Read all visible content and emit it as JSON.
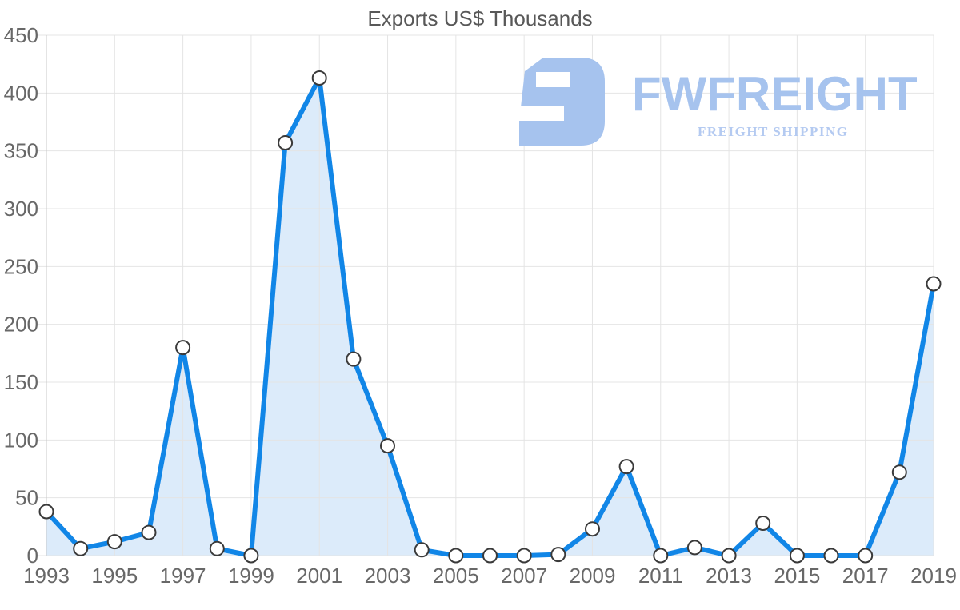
{
  "chart_data": {
    "type": "area",
    "title": "Exports US$ Thousands",
    "xlabel": "",
    "ylabel": "",
    "x": [
      1993,
      1994,
      1995,
      1996,
      1997,
      1998,
      1999,
      2000,
      2001,
      2002,
      2003,
      2004,
      2005,
      2006,
      2007,
      2008,
      2009,
      2010,
      2011,
      2012,
      2013,
      2014,
      2015,
      2016,
      2017,
      2018,
      2019
    ],
    "values": [
      38,
      6,
      12,
      20,
      180,
      6,
      0,
      357,
      413,
      170,
      95,
      5,
      0,
      0,
      0,
      1,
      23,
      77,
      0,
      7,
      0,
      28,
      0,
      0,
      0,
      72,
      235
    ],
    "series_name": "Exports US$ Thousands",
    "ylim": [
      0,
      450
    ],
    "yticks": [
      0,
      50,
      100,
      150,
      200,
      250,
      300,
      350,
      400,
      450
    ],
    "xticks": [
      1993,
      1995,
      1997,
      1999,
      2001,
      2003,
      2005,
      2007,
      2009,
      2011,
      2013,
      2015,
      2017,
      2019
    ],
    "grid": true,
    "legend": "none",
    "marker": "circle",
    "colors": {
      "line": "#1186e7",
      "fill": "#dcebfa",
      "marker_fill": "#ffffff",
      "marker_stroke": "#3a3a3a",
      "grid": "#e4e4e4",
      "axis": "#c9c9c9",
      "label": "#686868",
      "title": "#585858"
    }
  },
  "watermark": {
    "brand": "FWFREIGHT",
    "tagline": "FREIGHT SHIPPING",
    "color": "#a6c3ee",
    "tagline_color": "#b4caf1"
  }
}
